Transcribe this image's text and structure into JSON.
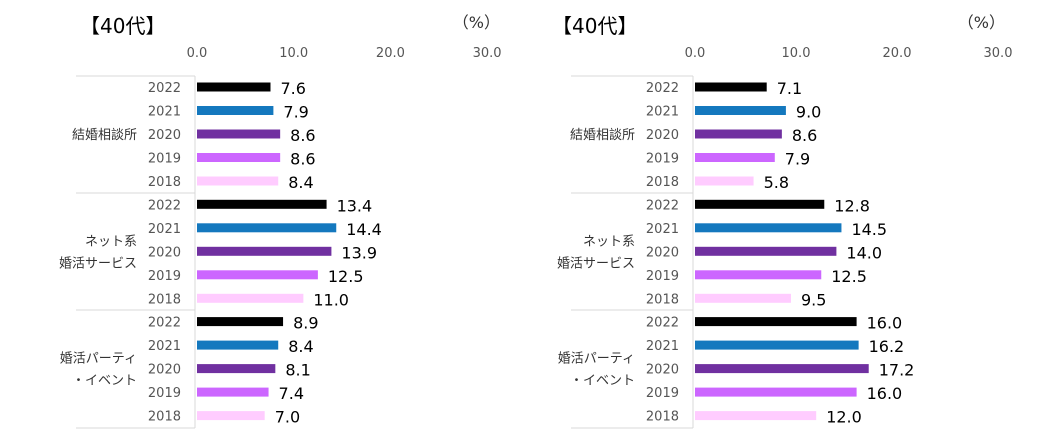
{
  "chart_data": [
    {
      "type": "bar",
      "orientation": "horizontal",
      "title": "【40代】",
      "unit_label": "（%）",
      "xlim": [
        0,
        30
      ],
      "xticks": [
        "0.0",
        "10.0",
        "20.0",
        "30.0"
      ],
      "years": [
        "2022",
        "2021",
        "2020",
        "2019",
        "2018"
      ],
      "groups": [
        {
          "label": [
            "結婚相談所"
          ],
          "values": [
            7.6,
            7.9,
            8.6,
            8.6,
            8.4
          ]
        },
        {
          "label": [
            "ネット系",
            "婚活サービス"
          ],
          "values": [
            13.4,
            14.4,
            13.9,
            12.5,
            11.0
          ]
        },
        {
          "label": [
            "婚活パーティ",
            "・イベント"
          ],
          "values": [
            8.9,
            8.4,
            8.1,
            7.4,
            7.0
          ]
        }
      ]
    },
    {
      "type": "bar",
      "orientation": "horizontal",
      "title": "【40代】",
      "unit_label": "（%）",
      "xlim": [
        0,
        30
      ],
      "xticks": [
        "0.0",
        "10.0",
        "20.0",
        "30.0"
      ],
      "years": [
        "2022",
        "2021",
        "2020",
        "2019",
        "2018"
      ],
      "groups": [
        {
          "label": [
            "結婚相談所"
          ],
          "values": [
            7.1,
            9.0,
            8.6,
            7.9,
            5.8
          ]
        },
        {
          "label": [
            "ネット系",
            "婚活サービス"
          ],
          "values": [
            12.8,
            14.5,
            14.0,
            12.5,
            9.5
          ]
        },
        {
          "label": [
            "婚活パーティ",
            "・イベント"
          ],
          "values": [
            16.0,
            16.2,
            17.2,
            16.0,
            12.0
          ]
        }
      ]
    }
  ],
  "colors": {
    "2022": "#000000",
    "2021": "#1478be",
    "2020": "#7030a0",
    "2019": "#cc66ff",
    "2018": "#ffccff"
  }
}
